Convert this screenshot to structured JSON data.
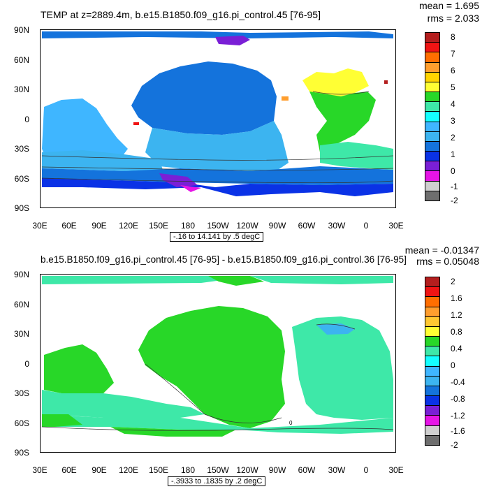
{
  "panels": [
    {
      "title": "TEMP at z=2889.4m, b.e15.B1850.f09_g16.pi_control.45 [76-95]",
      "mean": "mean = 1.695",
      "rms": "rms = 2.033",
      "info": "-.16 to 14.141 by .5 degC",
      "lat_labels": [
        "90N",
        "60N",
        "30N",
        "0",
        "30S",
        "60S",
        "90S"
      ],
      "lon_labels": [
        "30E",
        "60E",
        "90E",
        "120E",
        "150E",
        "180",
        "150W",
        "120W",
        "90W",
        "60W",
        "30W",
        "0",
        "30E"
      ],
      "colorbar_labels": [
        "8",
        "7",
        "6",
        "5",
        "4",
        "3",
        "2",
        "1",
        "0",
        "-1",
        "-2"
      ],
      "colorbar_colors": [
        "#b41e1e",
        "#f01414",
        "#ff6e00",
        "#ff9e2e",
        "#ffd400",
        "#ffff34",
        "#28d728",
        "#3ee8a8",
        "#14ffff",
        "#3fb6ff",
        "#3cb4f0",
        "#1473dc",
        "#0a32e6",
        "#7a1fd6",
        "#e614e6",
        "#cfcfcf",
        "#6e6e6e"
      ]
    },
    {
      "title": "b.e15.B1850.f09_g16.pi_control.45 [76-95] - b.e15.B1850.f09_g16.pi_control.36 [76-95]",
      "mean": "mean = -0.01347",
      "rms": "rms = 0.05048",
      "info": "-.3933 to .1835 by .2 degC",
      "lat_labels": [
        "90N",
        "60N",
        "30N",
        "0",
        "30S",
        "60S",
        "90S"
      ],
      "lon_labels": [
        "30E",
        "60E",
        "90E",
        "120E",
        "150E",
        "180",
        "150W",
        "120W",
        "90W",
        "60W",
        "30W",
        "0",
        "30E"
      ],
      "colorbar_labels": [
        "2",
        "1.6",
        "1.2",
        "0.8",
        "0.4",
        "0",
        "-0.4",
        "-0.8",
        "-1.2",
        "-1.6",
        "-2"
      ],
      "colorbar_colors": [
        "#b41e1e",
        "#f01414",
        "#ff6e00",
        "#ff9e2e",
        "#ffc832",
        "#ffff34",
        "#28d728",
        "#3ee8a8",
        "#14ffff",
        "#3fb6ff",
        "#3cb4f0",
        "#1473dc",
        "#0a32e6",
        "#7a1fd6",
        "#e614e6",
        "#cfcfcf",
        "#6e6e6e"
      ]
    }
  ],
  "bottom_contour_label": "0"
}
